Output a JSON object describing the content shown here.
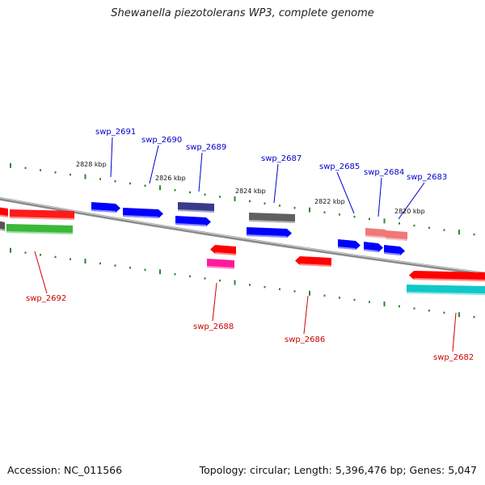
{
  "title": "Shewanella piezotolerans WP3, complete genome",
  "footer": {
    "accession": "Accession: NC_011566",
    "summary": "Topology: circular; Length: 5,396,476 bp; Genes: 5,047"
  },
  "colors": {
    "upper_label": "#0000cc",
    "lower_label": "#cc0000",
    "tick": "#2a8a2a",
    "backbone": "#8a8a8a"
  },
  "scale_labels": [
    "2828 kbp",
    "2826 kbp",
    "2824 kbp",
    "2822 kbp",
    "2820 kbp"
  ],
  "genes_upper": [
    {
      "id": "swp_2691",
      "label": "swp_2691"
    },
    {
      "id": "swp_2690",
      "label": "swp_2690"
    },
    {
      "id": "swp_2689",
      "label": "swp_2689"
    },
    {
      "id": "swp_2687",
      "label": "swp_2687"
    },
    {
      "id": "swp_2685",
      "label": "swp_2685"
    },
    {
      "id": "swp_2684",
      "label": "swp_2684"
    },
    {
      "id": "swp_2683",
      "label": "swp_2683"
    }
  ],
  "genes_lower": [
    {
      "id": "swp_2692",
      "label": "swp_2692"
    },
    {
      "id": "swp_2688",
      "label": "swp_2688"
    },
    {
      "id": "swp_2686",
      "label": "swp_2686"
    },
    {
      "id": "swp_2682",
      "label": "swp_2682"
    }
  ]
}
